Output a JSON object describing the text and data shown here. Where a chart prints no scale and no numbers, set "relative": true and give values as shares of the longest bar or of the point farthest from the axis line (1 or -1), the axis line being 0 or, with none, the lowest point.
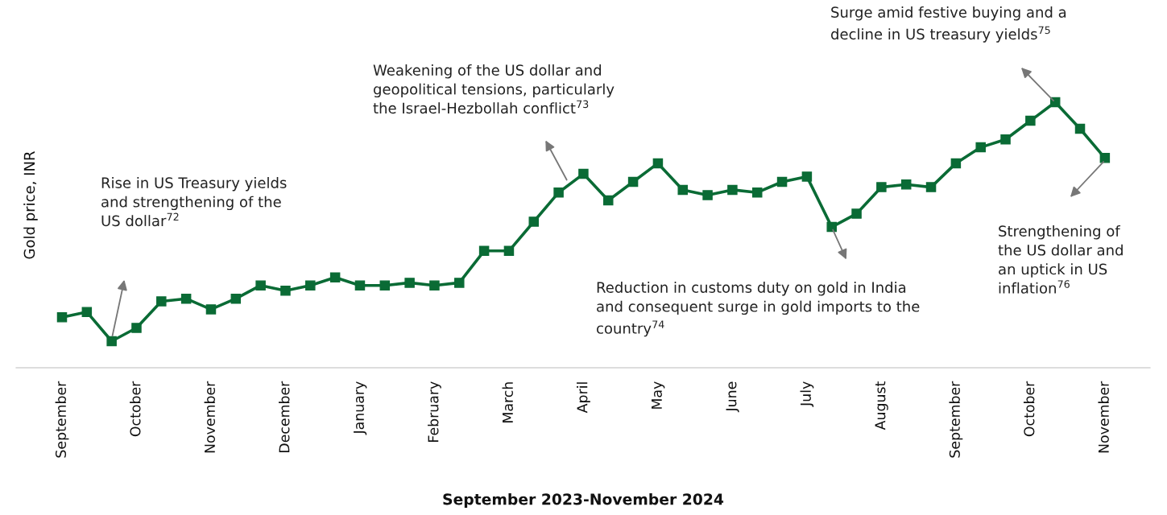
{
  "chart_data": {
    "type": "line",
    "relative": true,
    "marker": "square",
    "line_style": "solid",
    "ylabel": "Gold price, INR",
    "xlabel": "September 2023-November 2024",
    "categories": [
      "September",
      null,
      null,
      "October",
      null,
      null,
      "November",
      null,
      null,
      "December",
      null,
      null,
      "January",
      null,
      null,
      "February",
      null,
      null,
      "March",
      null,
      null,
      "April",
      null,
      null,
      "May",
      null,
      null,
      "June",
      null,
      null,
      "July",
      null,
      null,
      "August",
      null,
      null,
      "September",
      null,
      null,
      "October",
      null,
      null,
      "November"
    ],
    "series": [
      {
        "color": "#0a6b35",
        "values": [
          0.19,
          0.21,
          0.1,
          0.15,
          0.25,
          0.26,
          0.22,
          0.26,
          0.31,
          0.29,
          0.31,
          0.34,
          0.31,
          0.31,
          0.32,
          0.31,
          0.32,
          0.44,
          0.44,
          0.55,
          0.66,
          0.73,
          0.63,
          0.7,
          0.77,
          0.67,
          0.65,
          0.67,
          0.66,
          0.7,
          0.72,
          0.53,
          0.58,
          0.68,
          0.69,
          0.68,
          0.77,
          0.83,
          0.86,
          0.93,
          1,
          0.9,
          0.79
        ]
      }
    ],
    "annotations": [
      "Rise in US Treasury yields\nand strengthening of the\nUS dollar$^{72}$",
      "Weakening of the US dollar and\ngeopolitical tensions, particularly\nthe Israel-Hezbollah conflict$^{73}$",
      "Reduction in customs duty on gold in India\nand consequent surge in gold imports to the\ncountry$^{74}$",
      "Strengthening of\nthe US dollar and\nan uptick in US\ninflation$^{76}$",
      "Surge amid festive buying and a\ndecline in US treasury yields$^{75}$"
    ]
  }
}
